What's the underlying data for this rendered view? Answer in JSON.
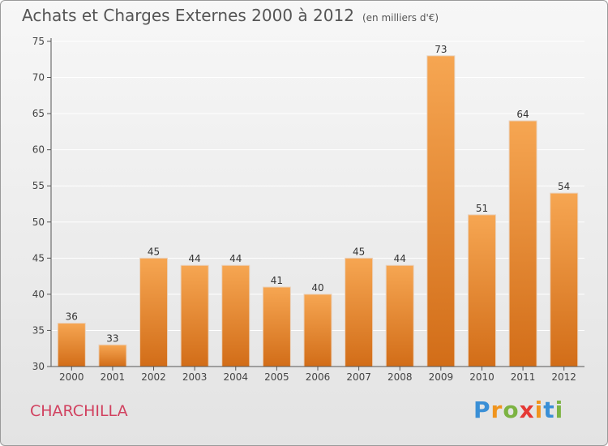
{
  "title": "Achats et Charges Externes 2000 à 2012",
  "unit_note": "(en milliers d'€)",
  "place_name": "CHARCHILLA",
  "logo": {
    "letters": [
      "P",
      "r",
      "o",
      "x",
      "i",
      "t",
      "i"
    ],
    "colors": [
      "#3a8fd6",
      "#f0941d",
      "#7cb342",
      "#e53935",
      "#f0941d",
      "#3a8fd6",
      "#7cb342"
    ]
  },
  "colors": {
    "bar_top": "#f6a652",
    "bar_bottom": "#d26d18",
    "axis": "#555555",
    "grid": "#ffffff"
  },
  "chart_data": {
    "type": "bar",
    "title": "Achats et Charges Externes 2000 à 2012",
    "subtitle": "(en milliers d'€)",
    "categories": [
      "2000",
      "2001",
      "2002",
      "2003",
      "2004",
      "2005",
      "2006",
      "2007",
      "2008",
      "2009",
      "2010",
      "2011",
      "2012"
    ],
    "values": [
      36,
      33,
      45,
      44,
      44,
      41,
      40,
      45,
      44,
      73,
      51,
      64,
      54
    ],
    "ylim": [
      30,
      75
    ],
    "yticks": [
      30,
      35,
      40,
      45,
      50,
      55,
      60,
      65,
      70,
      75
    ],
    "grid": true,
    "data_labels": true
  }
}
